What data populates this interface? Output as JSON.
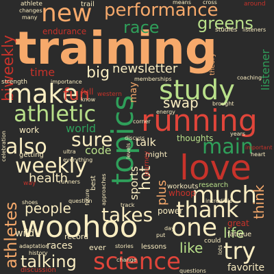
{
  "palette": {
    "background": "#2b2b2b"
  },
  "words": [
    {
      "text": "training",
      "color": "#f6a96b"
    },
    {
      "text": "new",
      "color": "#f6a96b"
    },
    {
      "text": "performance",
      "color": "#f6a96b"
    },
    {
      "text": "race",
      "color": "#2f9f5a"
    },
    {
      "text": "greens",
      "color": "#b9e08a"
    },
    {
      "text": "biweekly",
      "color": "#c8332b"
    },
    {
      "text": "make",
      "color": "#fbeec2"
    },
    {
      "text": "study",
      "color": "#b9e08a"
    },
    {
      "text": "running",
      "color": "#e0453a"
    },
    {
      "text": "athletic",
      "color": "#b9e08a"
    },
    {
      "text": "topics",
      "color": "#2f9f5a"
    },
    {
      "text": "love",
      "color": "#c8332b"
    },
    {
      "text": "weekly",
      "color": "#fbeec2"
    },
    {
      "text": "woohoo",
      "color": "#fbeec2"
    },
    {
      "text": "science",
      "color": "#e0453a"
    },
    {
      "text": "one",
      "color": "#fbeec2"
    },
    {
      "text": "much",
      "color": "#fbeec2"
    },
    {
      "text": "thank",
      "color": "#fbeec2"
    },
    {
      "text": "main",
      "color": "#2f9f5a"
    },
    {
      "text": "sure",
      "color": "#fbeec2"
    },
    {
      "text": "also",
      "color": "#fbeec2"
    },
    {
      "text": "takes",
      "color": "#fbeec2"
    },
    {
      "text": "talking",
      "color": "#fbeec2"
    },
    {
      "text": "athletes",
      "color": "#f6a96b"
    },
    {
      "text": "try",
      "color": "#fbeec2"
    },
    {
      "text": "fun",
      "color": "#e0453a"
    },
    {
      "text": "big",
      "color": "#fbeec2"
    },
    {
      "text": "newsletter",
      "color": "#fbeec2"
    },
    {
      "text": "hot",
      "color": "#fbeec2"
    },
    {
      "text": "swap",
      "color": "#fbeec2"
    },
    {
      "text": "people",
      "color": "#fbeec2"
    },
    {
      "text": "health",
      "color": "#fbeec2"
    },
    {
      "text": "world",
      "color": "#2f9f5a"
    },
    {
      "text": "code",
      "color": "#b9e08a"
    },
    {
      "text": "plus",
      "color": "#f6a96b"
    },
    {
      "text": "life",
      "color": "#b9e08a"
    },
    {
      "text": "think",
      "color": "#f6a96b"
    },
    {
      "text": "like",
      "color": "#b9e08a"
    },
    {
      "text": "time",
      "color": "#c8332b"
    },
    {
      "text": "talk",
      "color": "#fbeec2"
    },
    {
      "text": "wild",
      "color": "#fbeec2"
    },
    {
      "text": "sports",
      "color": "#fbeec2"
    },
    {
      "text": "endurance",
      "color": "#c8332b"
    },
    {
      "text": "listener",
      "color": "#2f9f5a"
    },
    {
      "text": "may",
      "color": "#f6a96b"
    },
    {
      "text": "races",
      "color": "#fbeec2"
    },
    {
      "text": "favorite",
      "color": "#fbeec2"
    },
    {
      "text": "thoughts",
      "color": "#b9e08a"
    },
    {
      "text": "workouts",
      "color": "#fbeec2"
    },
    {
      "text": "research",
      "color": "#b9e08a"
    },
    {
      "text": "whoop",
      "color": "#c8332b"
    },
    {
      "text": "might",
      "color": "#fbeec2"
    },
    {
      "text": "power",
      "color": "#fbeec2"
    },
    {
      "text": "great",
      "color": "#c8332b"
    },
    {
      "text": "work",
      "color": "#fbeec2"
    },
    {
      "text": "getting",
      "color": "#fbeec2"
    },
    {
      "text": "record",
      "color": "#fbeec2"
    },
    {
      "text": "ever",
      "color": "#fbeec2"
    },
    {
      "text": "lessons",
      "color": "#fbeec2"
    },
    {
      "text": "discussion",
      "color": "#c8332b"
    },
    {
      "text": "fatigue",
      "color": "#fbeec2"
    },
    {
      "text": "could",
      "color": "#fbeec2"
    },
    {
      "text": "strength",
      "color": "#fbeec2"
    },
    {
      "text": "importance",
      "color": "#fbeec2"
    },
    {
      "text": "full",
      "color": "#c8332b"
    },
    {
      "text": "trail",
      "color": "#fbeec2"
    },
    {
      "text": "around",
      "color": "#c8332b"
    },
    {
      "text": "studies",
      "color": "#fbeec2"
    },
    {
      "text": "listeners",
      "color": "#fbeec2"
    },
    {
      "text": "theory",
      "color": "#f6a96b"
    },
    {
      "text": "memberships",
      "color": "#fbeec2"
    },
    {
      "text": "western",
      "color": "#c8332b"
    },
    {
      "text": "coaching",
      "color": "#fbeec2"
    },
    {
      "text": "corner",
      "color": "#fbeec2"
    },
    {
      "text": "energy",
      "color": "#fbeec2"
    },
    {
      "text": "brought",
      "color": "#fbeec2"
    },
    {
      "text": "years",
      "color": "#fbeec2"
    },
    {
      "text": "heart",
      "color": "#fbeec2"
    },
    {
      "text": "important",
      "color": "#c8332b"
    },
    {
      "text": "question",
      "color": "#fbeec2"
    },
    {
      "text": "incredible",
      "color": "#fbeec2"
    },
    {
      "text": "questions",
      "color": "#fbeec2"
    },
    {
      "text": "stories",
      "color": "#fbeec2"
    },
    {
      "text": "change",
      "color": "#fbeec2"
    },
    {
      "text": "history",
      "color": "#fbeec2"
    },
    {
      "text": "adaptation",
      "color": "#fbeec2"
    },
    {
      "text": "celebration",
      "color": "#fbeec2"
    },
    {
      "text": "shoes",
      "color": "#fbeec2"
    },
    {
      "text": "approaches",
      "color": "#fbeec2"
    },
    {
      "text": "journey",
      "color": "#c8332b"
    },
    {
      "text": "athlete",
      "color": "#fbeec2"
    },
    {
      "text": "many",
      "color": "#fbeec2"
    },
    {
      "text": "changes",
      "color": "#fbeec2"
    },
    {
      "text": "cross",
      "color": "#fbeec2"
    },
    {
      "text": "means",
      "color": "#fbeec2"
    },
    {
      "text": "lots",
      "color": "#fbeec2"
    },
    {
      "text": "way",
      "color": "#c8332b"
    },
    {
      "text": "best",
      "color": "#fbeec2"
    },
    {
      "text": "future",
      "color": "#fbeec2"
    },
    {
      "text": "track",
      "color": "#fbeec2"
    },
    {
      "text": "put",
      "color": "#fbeec2"
    },
    {
      "text": "day",
      "color": "#fbeec2"
    },
    {
      "text": "discuss",
      "color": "#fbeec2"
    },
    {
      "text": "ultra",
      "color": "#fbeec2"
    },
    {
      "text": "everything",
      "color": "#fbeec2"
    },
    {
      "text": "know",
      "color": "#fbeec2"
    },
    {
      "text": "runners",
      "color": "#fbeec2"
    },
    {
      "text": "levels",
      "color": "#fbeec2"
    }
  ]
}
